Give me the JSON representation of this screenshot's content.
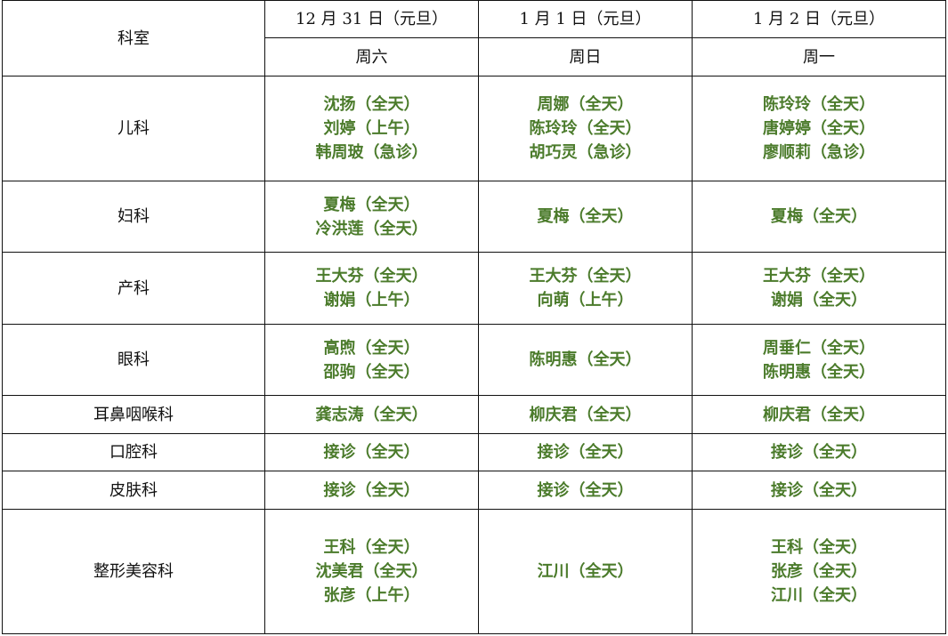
{
  "header": {
    "dept_label": "科室",
    "dates": [
      "12 月 31 日（元旦）",
      "1 月 1 日（元旦）",
      "1 月 2 日（元旦）"
    ],
    "weekdays": [
      "周六",
      "周日",
      "周一"
    ]
  },
  "text_color": "#4b7b2b",
  "rows": [
    {
      "dept": "儿科",
      "cells": [
        [
          "沈扬（全天）",
          "刘婷（上午）",
          "韩周玻（急诊）"
        ],
        [
          "周娜（全天）",
          "陈玲玲（全天）",
          "胡巧灵（急诊）"
        ],
        [
          "陈玲玲（全天）",
          "唐婷婷（全天）",
          "廖顺莉（急诊）"
        ]
      ]
    },
    {
      "dept": "妇科",
      "cells": [
        [
          "夏梅（全天）",
          "冷洪莲（全天）"
        ],
        [
          "夏梅（全天）"
        ],
        [
          "夏梅（全天）"
        ]
      ]
    },
    {
      "dept": "产科",
      "cells": [
        [
          "王大芬（全天）",
          "谢娟（上午）"
        ],
        [
          "王大芬（全天）",
          "向萌（上午）"
        ],
        [
          "王大芬（全天）",
          "谢娟（全天）"
        ]
      ]
    },
    {
      "dept": "眼科",
      "cells": [
        [
          "高煦（全天）",
          "邵驹（全天）"
        ],
        [
          "陈明惠（全天）"
        ],
        [
          "周垂仁（全天）",
          "陈明惠（全天）"
        ]
      ]
    },
    {
      "dept": "耳鼻咽喉科",
      "cells": [
        [
          "龚志涛（全天）"
        ],
        [
          "柳庆君（全天）"
        ],
        [
          "柳庆君（全天）"
        ]
      ]
    },
    {
      "dept": "口腔科",
      "cells": [
        [
          "接诊（全天）"
        ],
        [
          "接诊（全天）"
        ],
        [
          "接诊（全天）"
        ]
      ]
    },
    {
      "dept": "皮肤科",
      "cells": [
        [
          "接诊（全天）"
        ],
        [
          "接诊（全天）"
        ],
        [
          "接诊（全天）"
        ]
      ]
    },
    {
      "dept": "整形美容科",
      "cells": [
        [
          "王科（全天）",
          "沈美君（全天）",
          "张彦（上午）"
        ],
        [
          "江川（全天）"
        ],
        [
          "王科（全天）",
          "张彦（全天）",
          "江川（全天）"
        ]
      ]
    }
  ]
}
